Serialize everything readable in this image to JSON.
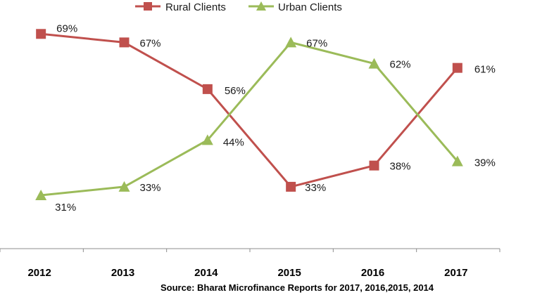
{
  "chart_data": {
    "type": "line",
    "title": "",
    "xlabel": "",
    "ylabel": "",
    "categories": [
      "2012",
      "2013",
      "2014",
      "2015",
      "2016",
      "2017"
    ],
    "ylim": [
      0,
      100
    ],
    "grid": false,
    "legend_position": "top-center",
    "series": [
      {
        "name": "Rural Clients",
        "color": "#C0504D",
        "marker": "square",
        "values": [
          69,
          67,
          56,
          33,
          38,
          61
        ],
        "labels": [
          "69%",
          "67%",
          "56%",
          "33%",
          "38%",
          "61%"
        ]
      },
      {
        "name": "Urban Clients",
        "color": "#9BBB59",
        "marker": "triangle",
        "values": [
          31,
          33,
          44,
          67,
          62,
          39
        ],
        "labels": [
          "31%",
          "33%",
          "44%",
          "67%",
          "62%",
          "39%"
        ]
      }
    ],
    "source": "Source: Bharat Microfinance Reports for 2017, 2016,2015, 2014"
  }
}
